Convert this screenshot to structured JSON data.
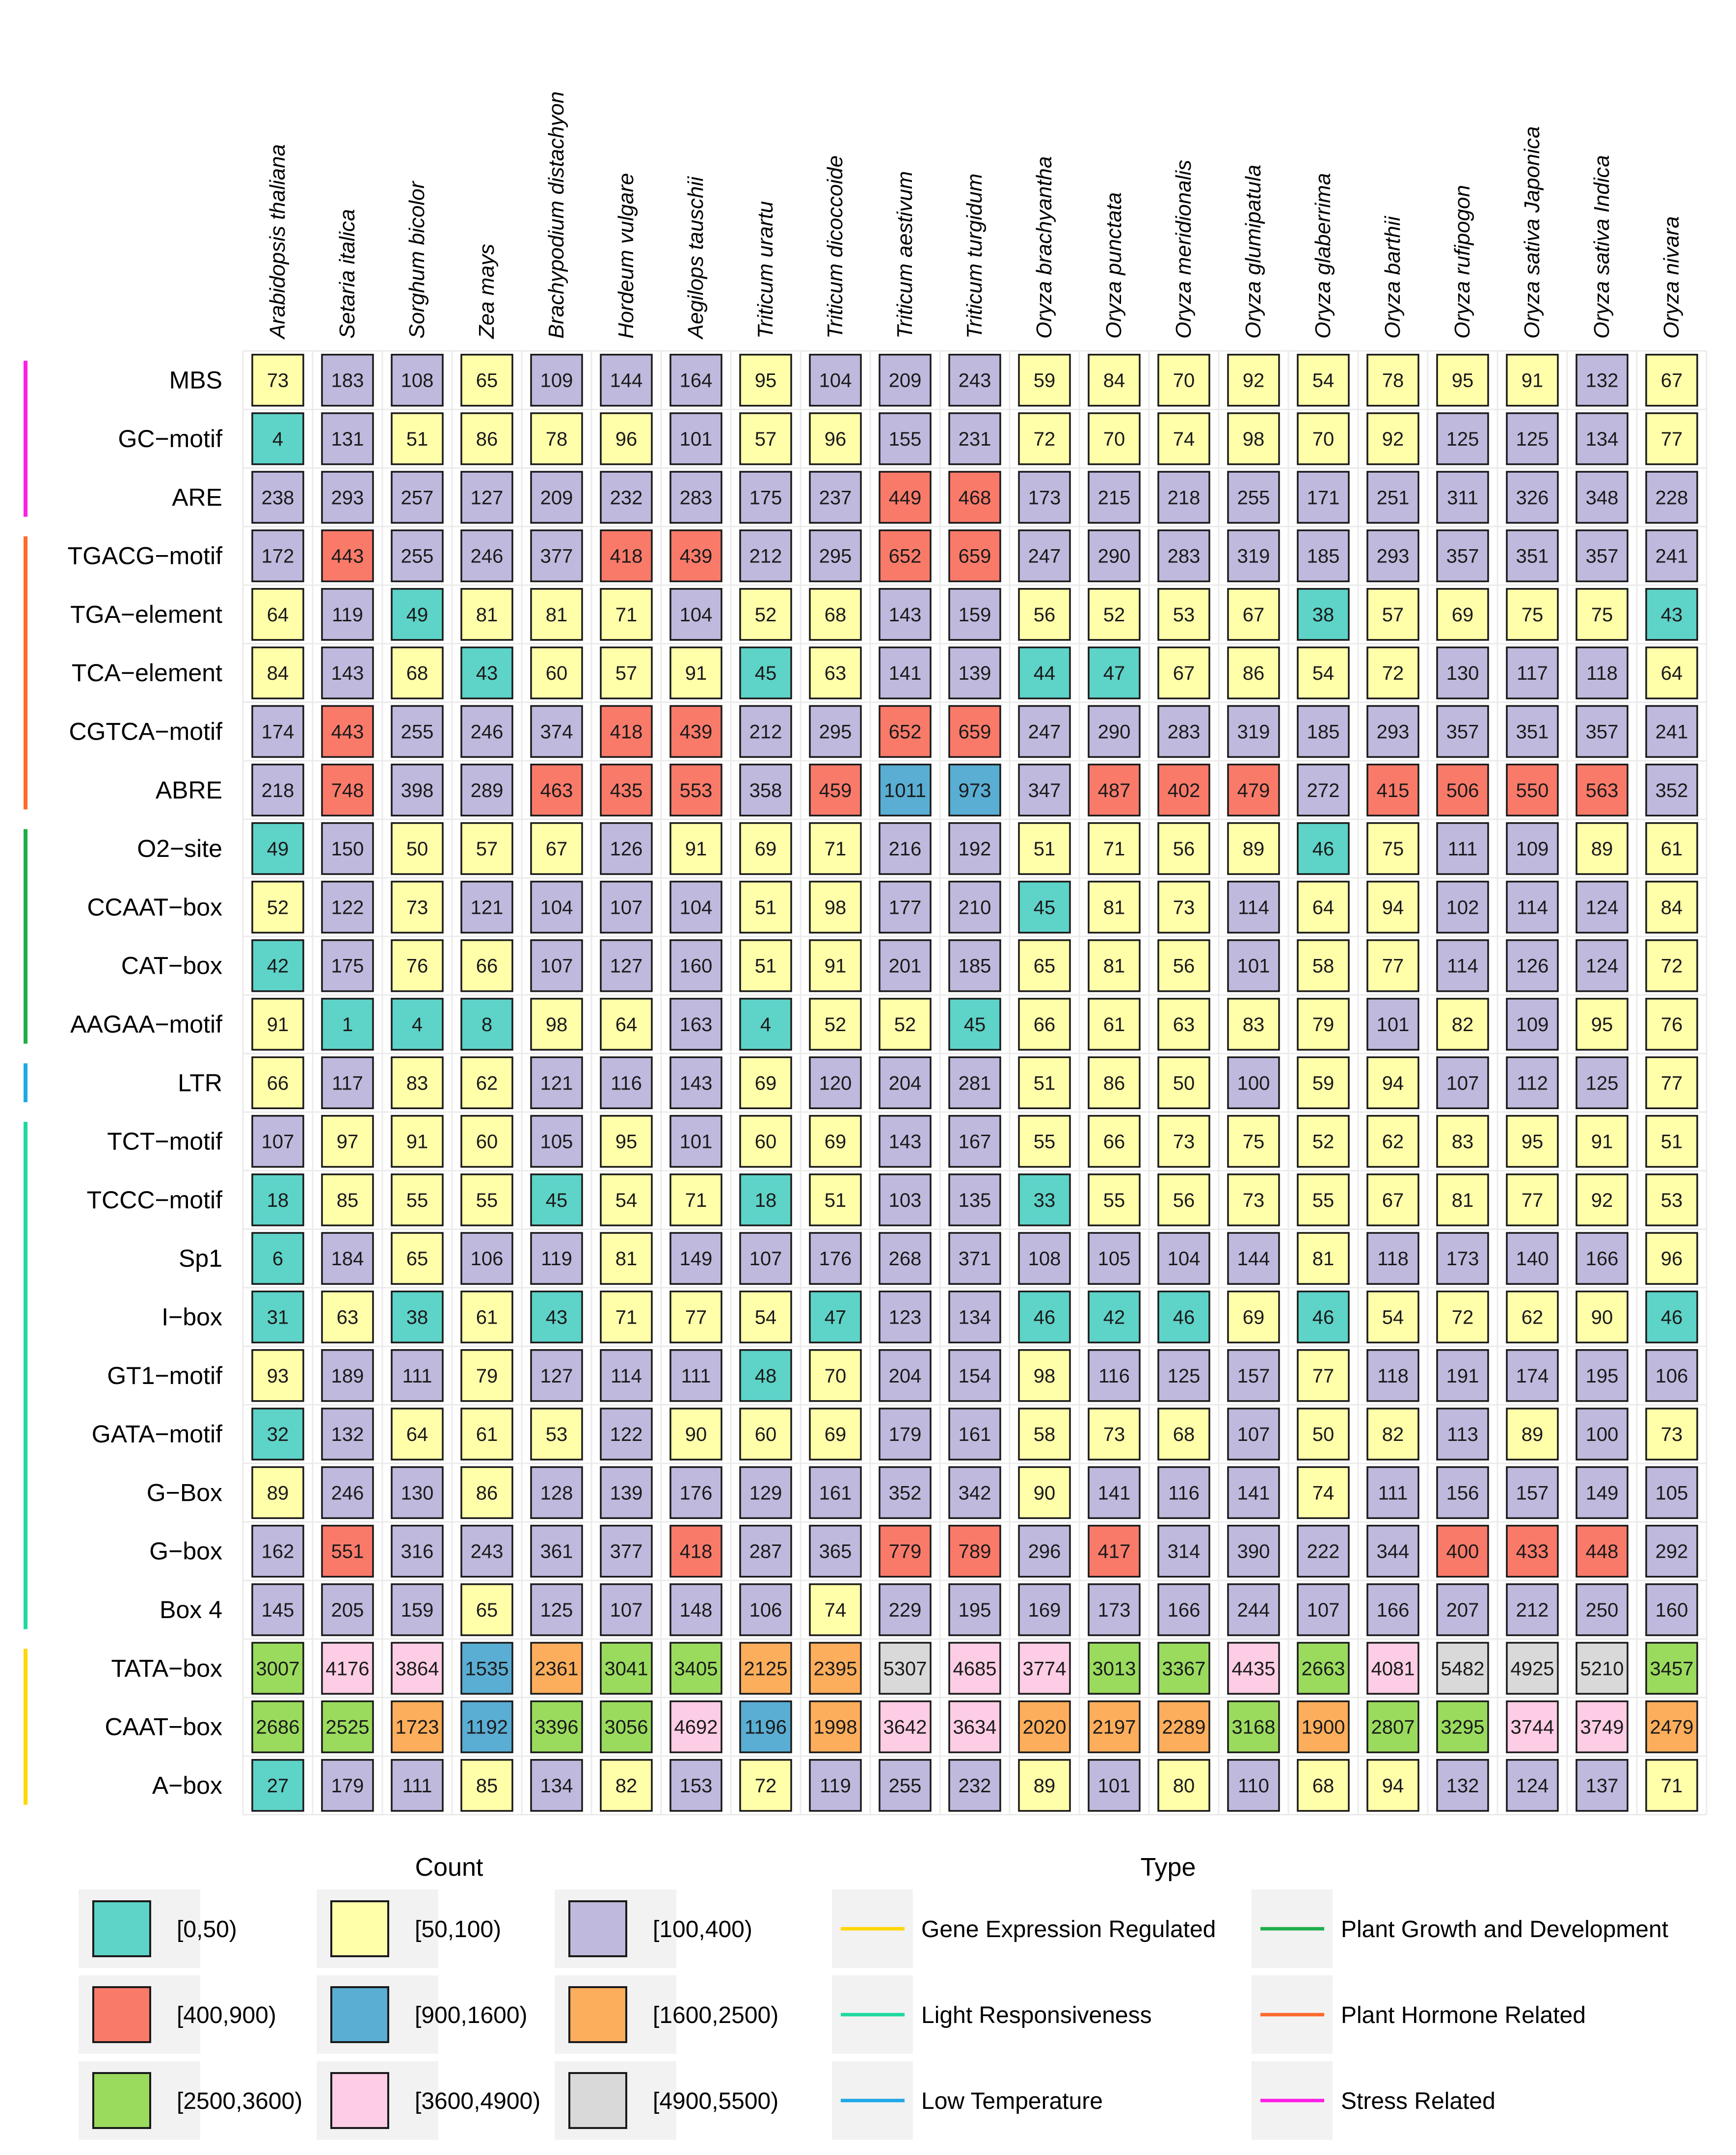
{
  "chart_data": {
    "type": "heatmap",
    "columns": [
      "Arabidopsis thaliana",
      "Setaria italica",
      "Sorghum bicolor",
      "Zea mays",
      "Brachypodium distachyon",
      "Hordeum vulgare",
      "Aegilops tauschii",
      "Triticum urartu",
      "Triticum dicoccoide",
      "Triticum aestivum",
      "Triticum turgidum",
      "Oryza brachyantha",
      "Oryza punctata",
      "Oryza meridionalis",
      "Oryza glumipatula",
      "Oryza glaberrima",
      "Oryza barthii",
      "Oryza rufipogon",
      "Oryza sativa Japonica",
      "Oryza sativa Indica",
      "Oryza nivara"
    ],
    "rows": [
      {
        "name": "MBS",
        "type": "Stress Related",
        "values": [
          73,
          183,
          108,
          65,
          109,
          144,
          164,
          95,
          104,
          209,
          243,
          59,
          84,
          70,
          92,
          54,
          78,
          95,
          91,
          132,
          67
        ]
      },
      {
        "name": "GC−motif",
        "type": "Stress Related",
        "values": [
          4,
          131,
          51,
          86,
          78,
          96,
          101,
          57,
          96,
          155,
          231,
          72,
          70,
          74,
          98,
          70,
          92,
          125,
          125,
          134,
          77
        ]
      },
      {
        "name": "ARE",
        "type": "Stress Related",
        "values": [
          238,
          293,
          257,
          127,
          209,
          232,
          283,
          175,
          237,
          449,
          468,
          173,
          215,
          218,
          255,
          171,
          251,
          311,
          326,
          348,
          228
        ]
      },
      {
        "name": "TGACG−motif",
        "type": "Plant Hormone Related",
        "values": [
          172,
          443,
          255,
          246,
          377,
          418,
          439,
          212,
          295,
          652,
          659,
          247,
          290,
          283,
          319,
          185,
          293,
          357,
          351,
          357,
          241
        ]
      },
      {
        "name": "TGA−element",
        "type": "Plant Hormone Related",
        "values": [
          64,
          119,
          49,
          81,
          81,
          71,
          104,
          52,
          68,
          143,
          159,
          56,
          52,
          53,
          67,
          38,
          57,
          69,
          75,
          75,
          43
        ]
      },
      {
        "name": "TCA−element",
        "type": "Plant Hormone Related",
        "values": [
          84,
          143,
          68,
          43,
          60,
          57,
          91,
          45,
          63,
          141,
          139,
          44,
          47,
          67,
          86,
          54,
          72,
          130,
          117,
          118,
          64
        ]
      },
      {
        "name": "CGTCA−motif",
        "type": "Plant Hormone Related",
        "values": [
          174,
          443,
          255,
          246,
          374,
          418,
          439,
          212,
          295,
          652,
          659,
          247,
          290,
          283,
          319,
          185,
          293,
          357,
          351,
          357,
          241
        ]
      },
      {
        "name": "ABRE",
        "type": "Plant Hormone Related",
        "values": [
          218,
          748,
          398,
          289,
          463,
          435,
          553,
          358,
          459,
          1011,
          973,
          347,
          487,
          402,
          479,
          272,
          415,
          506,
          550,
          563,
          352
        ]
      },
      {
        "name": "O2−site",
        "type": "Plant Growth and Development",
        "values": [
          49,
          150,
          50,
          57,
          67,
          126,
          91,
          69,
          71,
          216,
          192,
          51,
          71,
          56,
          89,
          46,
          75,
          111,
          109,
          89,
          61
        ]
      },
      {
        "name": "CCAAT−box",
        "type": "Plant Growth and Development",
        "values": [
          52,
          122,
          73,
          121,
          104,
          107,
          104,
          51,
          98,
          177,
          210,
          45,
          81,
          73,
          114,
          64,
          94,
          102,
          114,
          124,
          84
        ]
      },
      {
        "name": "CAT−box",
        "type": "Plant Growth and Development",
        "values": [
          42,
          175,
          76,
          66,
          107,
          127,
          160,
          51,
          91,
          201,
          185,
          65,
          81,
          56,
          101,
          58,
          77,
          114,
          126,
          124,
          72
        ]
      },
      {
        "name": "AAGAA−motif",
        "type": "Plant Growth and Development",
        "values": [
          91,
          1,
          4,
          8,
          98,
          64,
          163,
          4,
          52,
          52,
          45,
          66,
          61,
          63,
          83,
          79,
          101,
          82,
          109,
          95,
          76
        ]
      },
      {
        "name": "LTR",
        "type": "Low Temperature",
        "values": [
          66,
          117,
          83,
          62,
          121,
          116,
          143,
          69,
          120,
          204,
          281,
          51,
          86,
          50,
          100,
          59,
          94,
          107,
          112,
          125,
          77
        ]
      },
      {
        "name": "TCT−motif",
        "type": "Light Responsiveness",
        "values": [
          107,
          97,
          91,
          60,
          105,
          95,
          101,
          60,
          69,
          143,
          167,
          55,
          66,
          73,
          75,
          52,
          62,
          83,
          95,
          91,
          51
        ]
      },
      {
        "name": "TCCC−motif",
        "type": "Light Responsiveness",
        "values": [
          18,
          85,
          55,
          55,
          45,
          54,
          71,
          18,
          51,
          103,
          135,
          33,
          55,
          56,
          73,
          55,
          67,
          81,
          77,
          92,
          53
        ]
      },
      {
        "name": "Sp1",
        "type": "Light Responsiveness",
        "values": [
          6,
          184,
          65,
          106,
          119,
          81,
          149,
          107,
          176,
          268,
          371,
          108,
          105,
          104,
          144,
          81,
          118,
          173,
          140,
          166,
          96
        ]
      },
      {
        "name": "I−box",
        "type": "Light Responsiveness",
        "values": [
          31,
          63,
          38,
          61,
          43,
          71,
          77,
          54,
          47,
          123,
          134,
          46,
          42,
          46,
          69,
          46,
          54,
          72,
          62,
          90,
          46
        ]
      },
      {
        "name": "GT1−motif",
        "type": "Light Responsiveness",
        "values": [
          93,
          189,
          111,
          79,
          127,
          114,
          111,
          48,
          70,
          204,
          154,
          98,
          116,
          125,
          157,
          77,
          118,
          191,
          174,
          195,
          106
        ]
      },
      {
        "name": "GATA−motif",
        "type": "Light Responsiveness",
        "values": [
          32,
          132,
          64,
          61,
          53,
          122,
          90,
          60,
          69,
          179,
          161,
          58,
          73,
          68,
          107,
          50,
          82,
          113,
          89,
          100,
          73
        ]
      },
      {
        "name": "G−Box",
        "type": "Light Responsiveness",
        "values": [
          89,
          246,
          130,
          86,
          128,
          139,
          176,
          129,
          161,
          352,
          342,
          90,
          141,
          116,
          141,
          74,
          111,
          156,
          157,
          149,
          105
        ]
      },
      {
        "name": "G−box",
        "type": "Light Responsiveness",
        "values": [
          162,
          551,
          316,
          243,
          361,
          377,
          418,
          287,
          365,
          779,
          789,
          296,
          417,
          314,
          390,
          222,
          344,
          400,
          433,
          448,
          292
        ]
      },
      {
        "name": "Box 4",
        "type": "Light Responsiveness",
        "values": [
          145,
          205,
          159,
          65,
          125,
          107,
          148,
          106,
          74,
          229,
          195,
          169,
          173,
          166,
          244,
          107,
          166,
          207,
          212,
          250,
          160
        ]
      },
      {
        "name": "TATA−box",
        "type": "Gene Expression Regulated",
        "values": [
          3007,
          4176,
          3864,
          1535,
          2361,
          3041,
          3405,
          2125,
          2395,
          5307,
          4685,
          3774,
          3013,
          3367,
          4435,
          2663,
          4081,
          5482,
          4925,
          5210,
          3457
        ]
      },
      {
        "name": "CAAT−box",
        "type": "Gene Expression Regulated",
        "values": [
          2686,
          2525,
          1723,
          1192,
          3396,
          3056,
          4692,
          1196,
          1998,
          3642,
          3634,
          2020,
          2197,
          2289,
          3168,
          1900,
          2807,
          3295,
          3744,
          3749,
          2479
        ]
      },
      {
        "name": "A−box",
        "type": "Gene Expression Regulated",
        "values": [
          27,
          179,
          111,
          85,
          134,
          82,
          153,
          72,
          119,
          255,
          232,
          89,
          101,
          80,
          110,
          68,
          94,
          132,
          124,
          137,
          71
        ]
      }
    ],
    "count_legend": {
      "title": "Count",
      "bins": [
        {
          "label": "[0,50)",
          "min": 0,
          "max": 50,
          "color": "#5ED3C8"
        },
        {
          "label": "[50,100)",
          "min": 50,
          "max": 100,
          "color": "#FFFFAA"
        },
        {
          "label": "[100,400)",
          "min": 100,
          "max": 400,
          "color": "#BFB9DD"
        },
        {
          "label": "[400,900)",
          "min": 400,
          "max": 900,
          "color": "#FA7A6A"
        },
        {
          "label": "[900,1600)",
          "min": 900,
          "max": 1600,
          "color": "#5AADD3"
        },
        {
          "label": "[1600,2500)",
          "min": 1600,
          "max": 2500,
          "color": "#FDAE5C"
        },
        {
          "label": "[2500,3600)",
          "min": 2500,
          "max": 3600,
          "color": "#9ADB5E"
        },
        {
          "label": "[3600,4900)",
          "min": 3600,
          "max": 4900,
          "color": "#FCCDE4"
        },
        {
          "label": "[4900,5500)",
          "min": 4900,
          "max": 5500,
          "color": "#D9D9D9"
        }
      ]
    },
    "type_legend": {
      "title": "Type",
      "items": [
        {
          "label": "Gene Expression Regulated",
          "color": "#FFD700"
        },
        {
          "label": "Plant Growth and Development",
          "color": "#1DAE4A"
        },
        {
          "label": "Light Responsiveness",
          "color": "#1ED8A0"
        },
        {
          "label": "Plant Hormone Related",
          "color": "#FF6A2C"
        },
        {
          "label": "Low Temperature",
          "color": "#1EA8E6"
        },
        {
          "label": "Stress Related",
          "color": "#FF1EE6"
        }
      ]
    }
  }
}
